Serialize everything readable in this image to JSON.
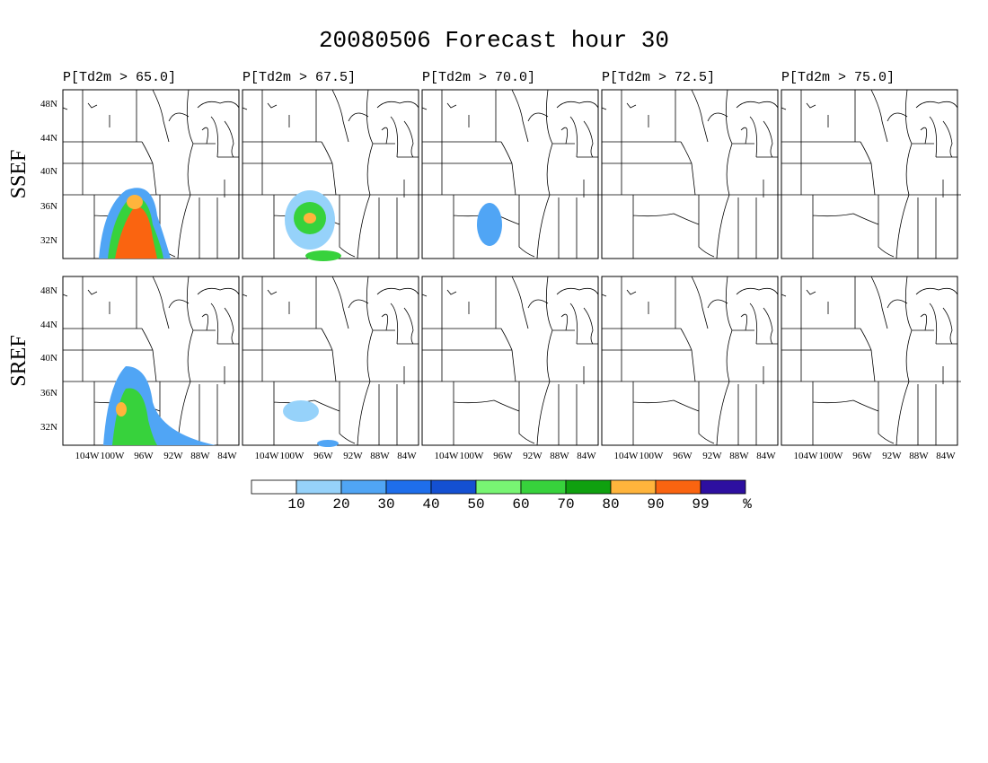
{
  "title": "20080506 Forecast hour 30",
  "columns": [
    "P[Td2m > 65.0]",
    "P[Td2m > 67.5]",
    "P[Td2m > 70.0]",
    "P[Td2m > 72.5]",
    "P[Td2m > 75.0]"
  ],
  "rows": [
    "SSEF",
    "SREF"
  ],
  "lat_labels": [
    "48N",
    "44N",
    "40N",
    "36N",
    "32N"
  ],
  "lon_labels": [
    "104W",
    "100W",
    "96W",
    "92W",
    "88W",
    "84W"
  ],
  "colorbar": {
    "colors": [
      "#ffffff",
      "#96d2fa",
      "#50a5f5",
      "#1e6eeb",
      "#1450d2",
      "#78f573",
      "#37d23c",
      "#0fa00f",
      "#ffb43c",
      "#fa6410",
      "#2d0fa0"
    ],
    "labels": [
      "10",
      "20",
      "30",
      "40",
      "50",
      "60",
      "70",
      "80",
      "90",
      "99"
    ],
    "unit": "%"
  }
}
